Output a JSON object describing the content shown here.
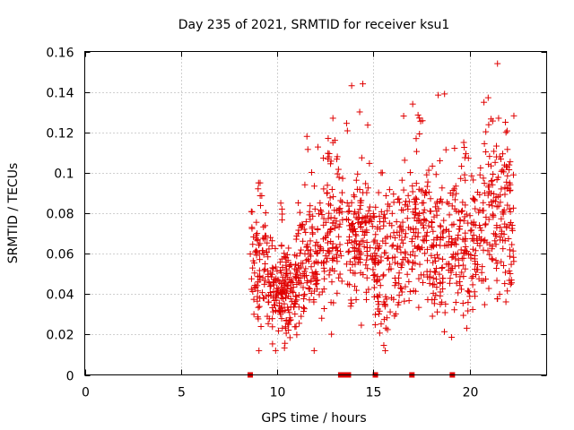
{
  "chart_data": {
    "type": "scatter",
    "title": "Day 235 of 2021, SRMTID for receiver ksu1",
    "xlabel": "GPS time / hours",
    "ylabel": "SRMTID / TECUs",
    "xlim": [
      0,
      24
    ],
    "ylim": [
      0,
      0.16
    ],
    "x_ticks": [
      0,
      5,
      10,
      15,
      20
    ],
    "x_tick_labels": [
      "0",
      "5",
      "10",
      "15",
      "20"
    ],
    "y_ticks": [
      0,
      0.02,
      0.04,
      0.06,
      0.08,
      0.1,
      0.12,
      0.14,
      0.16
    ],
    "y_tick_labels": [
      "0",
      "0.02",
      "0.04",
      "0.06",
      "0.08",
      "0.1",
      "0.12",
      "0.14",
      "0.16"
    ],
    "grid": true,
    "marker": "plus",
    "color": "#e00000",
    "zero_markers_x": [
      8.6,
      13.3,
      13.5,
      13.7,
      15.1,
      17.0,
      19.1
    ],
    "series": [
      {
        "name": "SRMTID",
        "segments": [
          {
            "x_start": 8.6,
            "x_end": 9.5,
            "mean": 0.055,
            "spread": 0.018,
            "peak": 0.095,
            "count": 80
          },
          {
            "x_start": 9.5,
            "x_end": 11.0,
            "mean": 0.042,
            "spread": 0.012,
            "peak": 0.085,
            "count": 180
          },
          {
            "x_start": 11.0,
            "x_end": 12.5,
            "mean": 0.058,
            "spread": 0.016,
            "peak": 0.118,
            "count": 140
          },
          {
            "x_start": 12.5,
            "x_end": 13.4,
            "mean": 0.072,
            "spread": 0.018,
            "peak": 0.127,
            "count": 90
          },
          {
            "x_start": 13.6,
            "x_end": 15.0,
            "mean": 0.065,
            "spread": 0.016,
            "peak": 0.144,
            "count": 140
          },
          {
            "x_start": 15.0,
            "x_end": 16.5,
            "mean": 0.055,
            "spread": 0.018,
            "peak": 0.1,
            "count": 140
          },
          {
            "x_start": 16.5,
            "x_end": 18.0,
            "mean": 0.07,
            "spread": 0.018,
            "peak": 0.134,
            "count": 130
          },
          {
            "x_start": 18.0,
            "x_end": 19.2,
            "mean": 0.062,
            "spread": 0.018,
            "peak": 0.139,
            "count": 110
          },
          {
            "x_start": 19.2,
            "x_end": 20.5,
            "mean": 0.065,
            "spread": 0.018,
            "peak": 0.115,
            "count": 120
          },
          {
            "x_start": 20.5,
            "x_end": 22.3,
            "mean": 0.08,
            "spread": 0.022,
            "peak": 0.154,
            "count": 170
          }
        ]
      }
    ]
  }
}
